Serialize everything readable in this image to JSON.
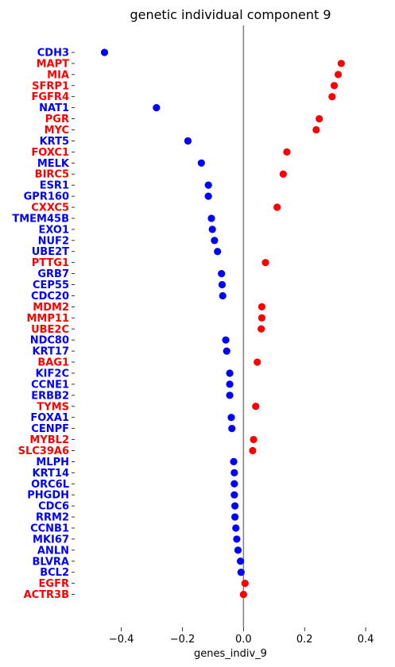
{
  "chart_data": {
    "type": "scatter",
    "title": "genetic individual component 9",
    "xlabel": "genes_indiv_9",
    "ylabel": "",
    "xlim": [
      -0.55,
      0.47
    ],
    "xticks": [
      -0.4,
      -0.2,
      0.0,
      0.2,
      0.4
    ],
    "xtick_labels": [
      "−0.4",
      "−0.2",
      "0.0",
      "0.2",
      "0.4"
    ],
    "zero_line": true,
    "grid": false,
    "colors": {
      "positive": "#ff0000",
      "negative": "#0000ff",
      "zero_line": "#808080"
    },
    "genes": [
      "CDH3",
      "MAPT",
      "MIA",
      "SFRP1",
      "FGFR4",
      "NAT1",
      "PGR",
      "MYC",
      "KRT5",
      "FOXC1",
      "MELK",
      "BIRC5",
      "ESR1",
      "GPR160",
      "CXXC5",
      "TMEM45B",
      "EXO1",
      "NUF2",
      "UBE2T",
      "PTTG1",
      "GRB7",
      "CEP55",
      "CDC20",
      "MDM2",
      "MMP11",
      "UBE2C",
      "NDC80",
      "KRT17",
      "BAG1",
      "KIF2C",
      "CCNE1",
      "ERBB2",
      "TYMS",
      "FOXA1",
      "CENPF",
      "MYBL2",
      "SLC39A6",
      "MLPH",
      "KRT14",
      "ORC6L",
      "PHGDH",
      "CDC6",
      "RRM2",
      "CCNB1",
      "MKI67",
      "ANLN",
      "BLVRA",
      "BCL2",
      "EGFR",
      "ACTR3B"
    ],
    "values": [
      -0.455,
      0.32,
      0.31,
      0.297,
      0.29,
      -0.285,
      0.248,
      0.238,
      -0.182,
      0.142,
      -0.138,
      0.13,
      -0.115,
      -0.115,
      0.11,
      -0.105,
      -0.102,
      -0.095,
      -0.085,
      0.072,
      -0.072,
      -0.07,
      -0.068,
      0.06,
      0.06,
      0.058,
      -0.058,
      -0.055,
      0.045,
      -0.045,
      -0.045,
      -0.045,
      0.04,
      -0.04,
      -0.038,
      0.033,
      0.03,
      -0.032,
      -0.03,
      -0.03,
      -0.03,
      -0.028,
      -0.028,
      -0.025,
      -0.022,
      -0.018,
      -0.01,
      -0.008,
      0.005,
      0.0
    ]
  }
}
